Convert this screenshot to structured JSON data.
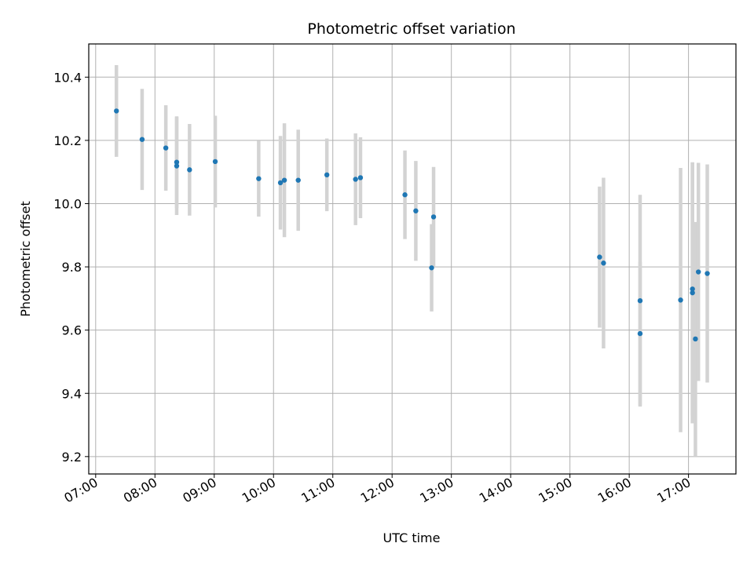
{
  "chart_data": {
    "type": "scatter",
    "title": "Photometric offset variation",
    "xlabel": "UTC time",
    "ylabel": "Photometric offset",
    "x_tick_labels": [
      "07:00",
      "08:00",
      "09:00",
      "10:00",
      "11:00",
      "12:00",
      "13:00",
      "14:00",
      "15:00",
      "16:00",
      "17:00"
    ],
    "y_tick_labels": [
      "9.2",
      "9.4",
      "9.6",
      "9.8",
      "10.0",
      "10.2",
      "10.4"
    ],
    "xlim": [
      "06:53",
      "17:48"
    ],
    "ylim": [
      9.145,
      10.505
    ],
    "grid": true,
    "point_color": "#1f77b4",
    "errorbar_color": "#d3d3d3",
    "points": [
      {
        "x": "07:21",
        "y": 10.293,
        "err": 0.145
      },
      {
        "x": "07:47",
        "y": 10.203,
        "err": 0.16
      },
      {
        "x": "08:11",
        "y": 10.176,
        "err": 0.135
      },
      {
        "x": "08:22",
        "y": 10.131,
        "err": 0.145
      },
      {
        "x": "08:22",
        "y": 10.119,
        "err": 0.155
      },
      {
        "x": "08:35",
        "y": 10.107,
        "err": 0.145
      },
      {
        "x": "09:01",
        "y": 10.133,
        "err": 0.145
      },
      {
        "x": "09:45",
        "y": 10.079,
        "err": 0.12
      },
      {
        "x": "10:07",
        "y": 10.066,
        "err": 0.148
      },
      {
        "x": "10:11",
        "y": 10.074,
        "err": 0.18
      },
      {
        "x": "10:25",
        "y": 10.074,
        "err": 0.16
      },
      {
        "x": "10:54",
        "y": 10.091,
        "err": 0.115
      },
      {
        "x": "11:23",
        "y": 10.077,
        "err": 0.145
      },
      {
        "x": "11:28",
        "y": 10.082,
        "err": 0.128
      },
      {
        "x": "12:13",
        "y": 10.028,
        "err": 0.14
      },
      {
        "x": "12:24",
        "y": 9.977,
        "err": 0.158
      },
      {
        "x": "12:40",
        "y": 9.797,
        "err": 0.138
      },
      {
        "x": "12:42",
        "y": 9.958,
        "err": 0.158
      },
      {
        "x": "15:30",
        "y": 9.831,
        "err": 0.223
      },
      {
        "x": "15:34",
        "y": 9.812,
        "err": 0.27
      },
      {
        "x": "16:11",
        "y": 9.693,
        "err": 0.335
      },
      {
        "x": "16:11",
        "y": 9.589,
        "err": 0.227
      },
      {
        "x": "16:52",
        "y": 9.695,
        "err": 0.418
      },
      {
        "x": "17:04",
        "y": 9.73,
        "err": 0.4
      },
      {
        "x": "17:04",
        "y": 9.718,
        "err": 0.413
      },
      {
        "x": "17:07",
        "y": 9.572,
        "err": 0.37
      },
      {
        "x": "17:10",
        "y": 9.784,
        "err": 0.345
      },
      {
        "x": "17:19",
        "y": 9.779,
        "err": 0.345
      }
    ]
  }
}
